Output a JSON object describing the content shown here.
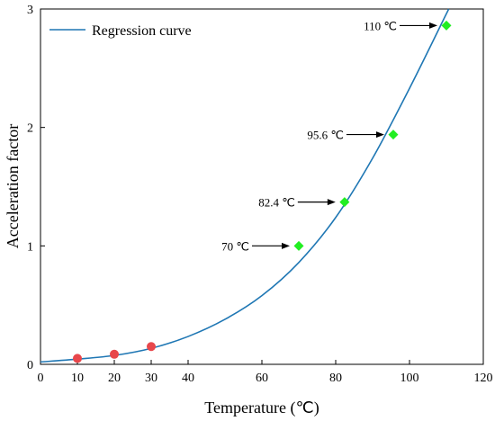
{
  "chart_data": {
    "type": "scatter",
    "title": "",
    "xlabel": "Temperature (℃)",
    "ylabel": "Acceleration factor",
    "xlim": [
      0,
      120
    ],
    "ylim": [
      0,
      3
    ],
    "xticks": [
      0,
      10,
      20,
      30,
      40,
      60,
      80,
      100,
      120
    ],
    "yticks": [
      0,
      1,
      2,
      3
    ],
    "grid": false,
    "legend": {
      "position": "top-left",
      "entries": [
        "Regression curve"
      ]
    },
    "curve": {
      "name": "Regression curve",
      "color": "#1f77b4",
      "x": [
        0,
        10,
        20,
        30,
        40,
        50,
        60,
        70,
        80,
        90,
        100,
        110
      ],
      "y": [
        0.02,
        0.044,
        0.075,
        0.135,
        0.235,
        0.38,
        0.58,
        0.86,
        1.24,
        1.74,
        2.33,
        2.96
      ]
    },
    "series": [
      {
        "marker": "circle",
        "color": "#e8474b",
        "x": [
          10,
          20,
          30
        ],
        "y": [
          0.05,
          0.085,
          0.15
        ]
      },
      {
        "marker": "diamond",
        "color": "#22ee22",
        "x": [
          70,
          82.4,
          95.6,
          110
        ],
        "y": [
          1.0,
          1.37,
          1.94,
          2.86
        ]
      }
    ],
    "annotations": [
      {
        "text": "70 ℃",
        "x": 70,
        "y": 1.0
      },
      {
        "text": "82.4 ℃",
        "x": 82.4,
        "y": 1.37
      },
      {
        "text": "95.6 ℃",
        "x": 95.6,
        "y": 1.94
      },
      {
        "text": "110 ℃",
        "x": 110,
        "y": 2.86
      }
    ]
  }
}
